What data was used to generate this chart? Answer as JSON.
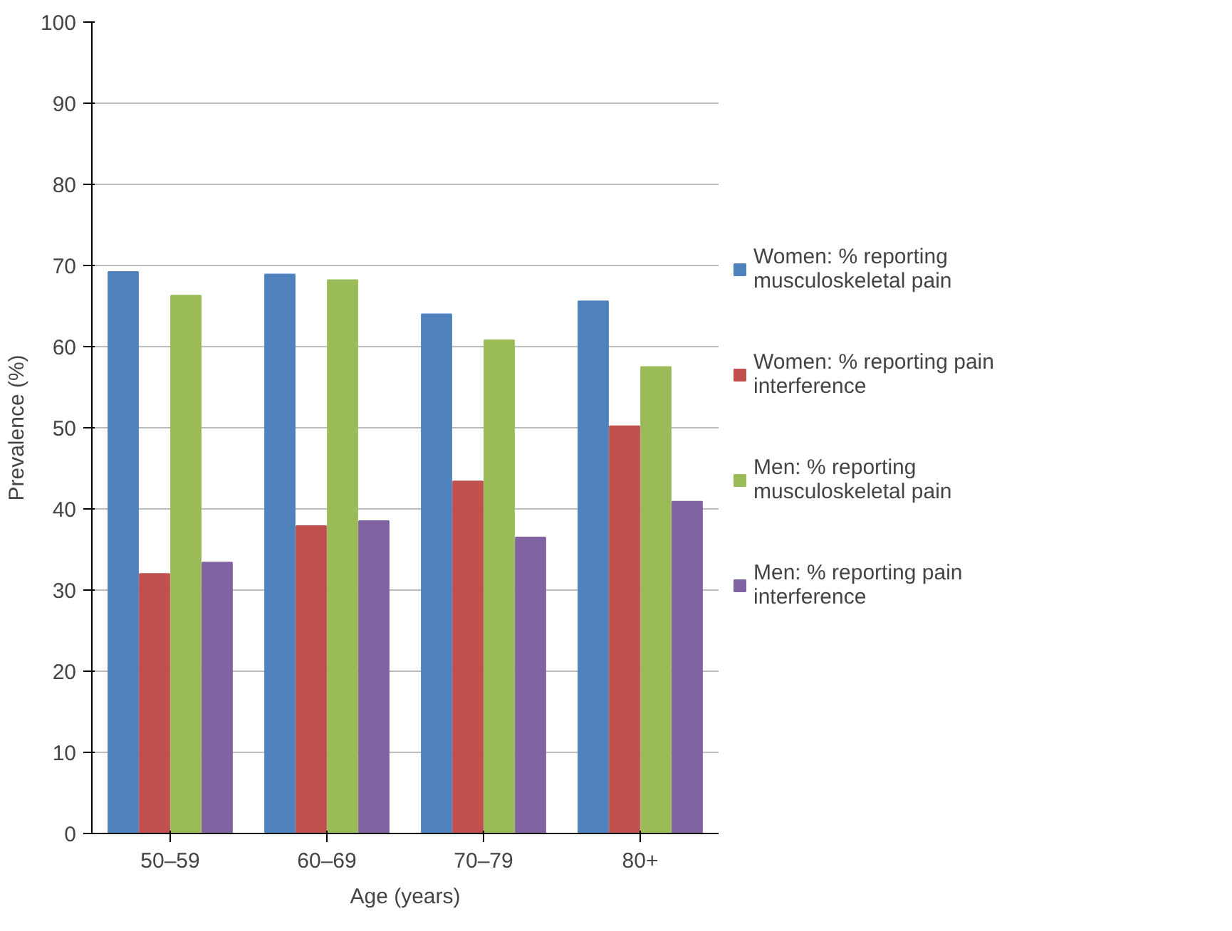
{
  "chart_data": {
    "type": "bar",
    "xlabel": "Age (years)",
    "ylabel": "Prevalence (%)",
    "categories": [
      "50–59",
      "60–69",
      "70–79",
      "80+"
    ],
    "series": [
      {
        "name": "Women: % reporting musculoskeletal pain",
        "color": "#4f81bd",
        "values": [
          69.2,
          68.9,
          64.0,
          65.6
        ]
      },
      {
        "name": "Women: % reporting pain interference",
        "color": "#c0504d",
        "values": [
          32.0,
          37.9,
          43.4,
          50.2
        ]
      },
      {
        "name": "Men: % reporting musculoskeletal pain",
        "color": "#9bbb59",
        "values": [
          66.3,
          68.2,
          60.8,
          57.5
        ]
      },
      {
        "name": "Men: % reporting pain interference",
        "color": "#8064a2",
        "values": [
          33.4,
          38.5,
          36.5,
          40.9
        ]
      }
    ],
    "ylim": [
      0,
      100
    ],
    "yticks": [
      0,
      10,
      20,
      30,
      40,
      50,
      60,
      70,
      80,
      90,
      100
    ],
    "grid": "y",
    "legend": "right"
  }
}
